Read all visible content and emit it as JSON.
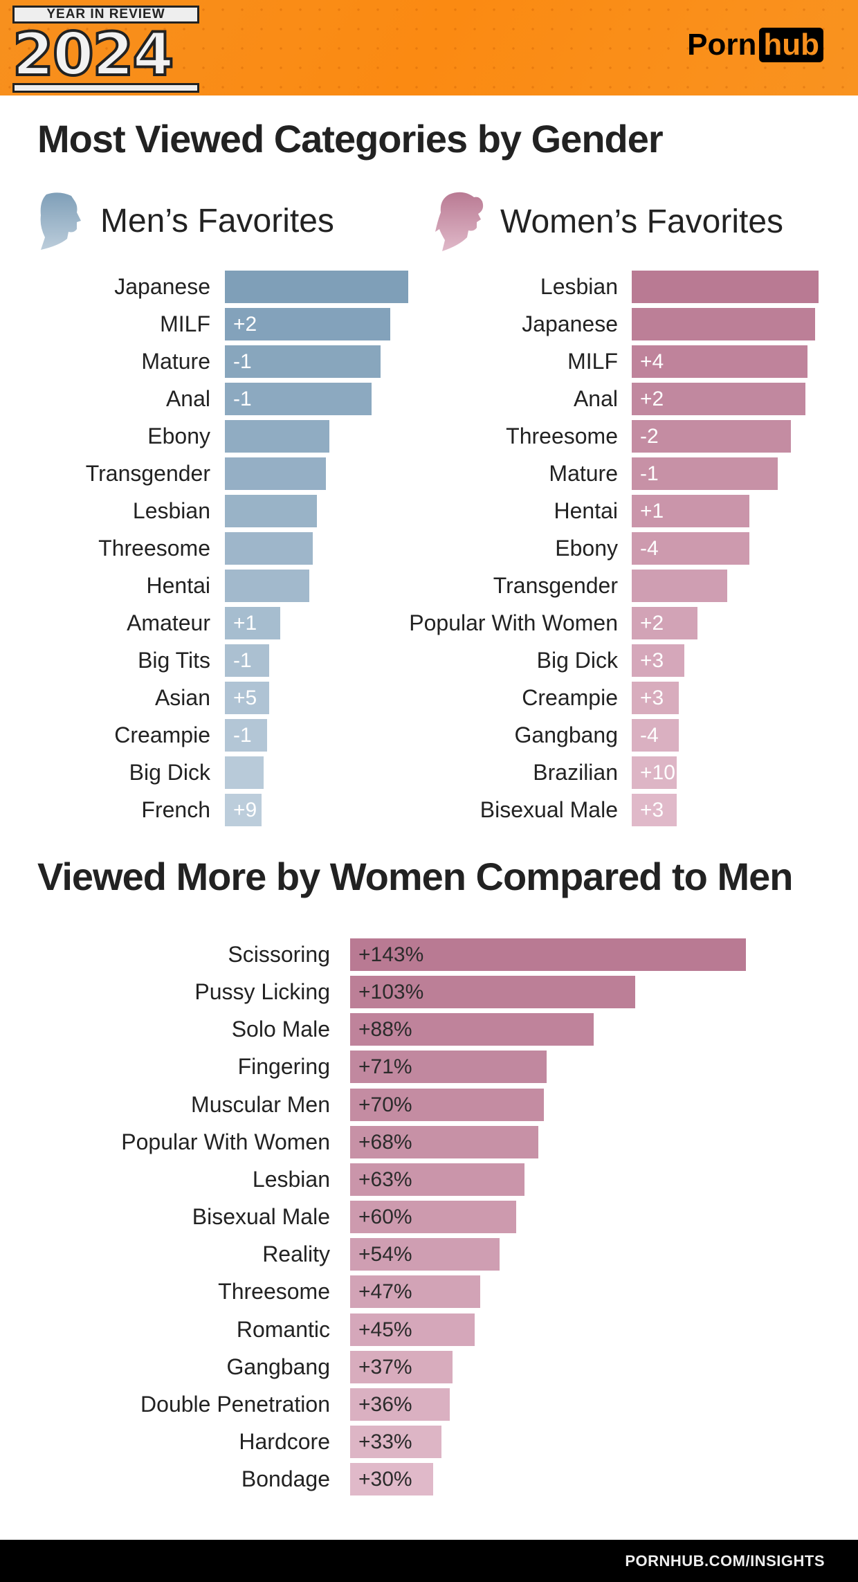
{
  "header": {
    "badge_top": "YEAR IN REVIEW",
    "badge_year": "2024",
    "logo_left": "Porn",
    "logo_right": "hub"
  },
  "section1": {
    "title": "Most Viewed Categories by Gender",
    "men_title": "Men’s Favorites",
    "women_title": "Women’s Favorites"
  },
  "section2": {
    "title": "Viewed More by Women Compared to Men"
  },
  "footer": {
    "url": "PORNHUB.COM/INSIGHTS"
  },
  "colors": {
    "men_dark": "#7f9fb8",
    "men_light": "#bccddb",
    "women_dark": "#b97a93",
    "women_light": "#e0b9c9",
    "orange": "#f7901e"
  },
  "chart_data": [
    {
      "type": "bar",
      "orientation": "horizontal",
      "title": "Men’s Favorites",
      "categories": [
        "Japanese",
        "MILF",
        "Mature",
        "Anal",
        "Ebony",
        "Transgender",
        "Lesbian",
        "Threesome",
        "Hentai",
        "Amateur",
        "Big Tits",
        "Asian",
        "Creampie",
        "Big Dick",
        "French"
      ],
      "relative_values": [
        100,
        90,
        85,
        80,
        57,
        55,
        50,
        48,
        46,
        30,
        24,
        24,
        23,
        21,
        20
      ],
      "rank_change": [
        "",
        "+2",
        "-1",
        "-1",
        "",
        "",
        "",
        "",
        "",
        "+1",
        "-1",
        "+5",
        "-1",
        "",
        "+9"
      ]
    },
    {
      "type": "bar",
      "orientation": "horizontal",
      "title": "Women’s Favorites",
      "categories": [
        "Lesbian",
        "Japanese",
        "MILF",
        "Anal",
        "Threesome",
        "Mature",
        "Hentai",
        "Ebony",
        "Transgender",
        "Popular With Women",
        "Big Dick",
        "Creampie",
        "Gangbang",
        "Brazilian",
        "Bisexual Male"
      ],
      "relative_values": [
        100,
        98,
        94,
        93,
        85,
        78,
        63,
        63,
        51,
        35,
        28,
        25,
        25,
        24,
        24
      ],
      "rank_change": [
        "",
        "",
        "+4",
        "+2",
        "-2",
        "-1",
        "+1",
        "-4",
        "",
        "+2",
        "+3",
        "+3",
        "-4",
        "+10",
        "+3"
      ]
    },
    {
      "type": "bar",
      "orientation": "horizontal",
      "title": "Viewed More by Women Compared to Men",
      "categories": [
        "Scissoring",
        "Pussy Licking",
        "Solo Male",
        "Fingering",
        "Muscular Men",
        "Popular With Women",
        "Lesbian",
        "Bisexual Male",
        "Reality",
        "Threesome",
        "Romantic",
        "Gangbang",
        "Double Penetration",
        "Hardcore",
        "Bondage"
      ],
      "values": [
        143,
        103,
        88,
        71,
        70,
        68,
        63,
        60,
        54,
        47,
        45,
        37,
        36,
        33,
        30
      ],
      "labels": [
        "+143%",
        "+103%",
        "+88%",
        "+71%",
        "+70%",
        "+68%",
        "+63%",
        "+60%",
        "+54%",
        "+47%",
        "+45%",
        "+37%",
        "+36%",
        "+33%",
        "+30%"
      ],
      "unit": "%"
    }
  ]
}
